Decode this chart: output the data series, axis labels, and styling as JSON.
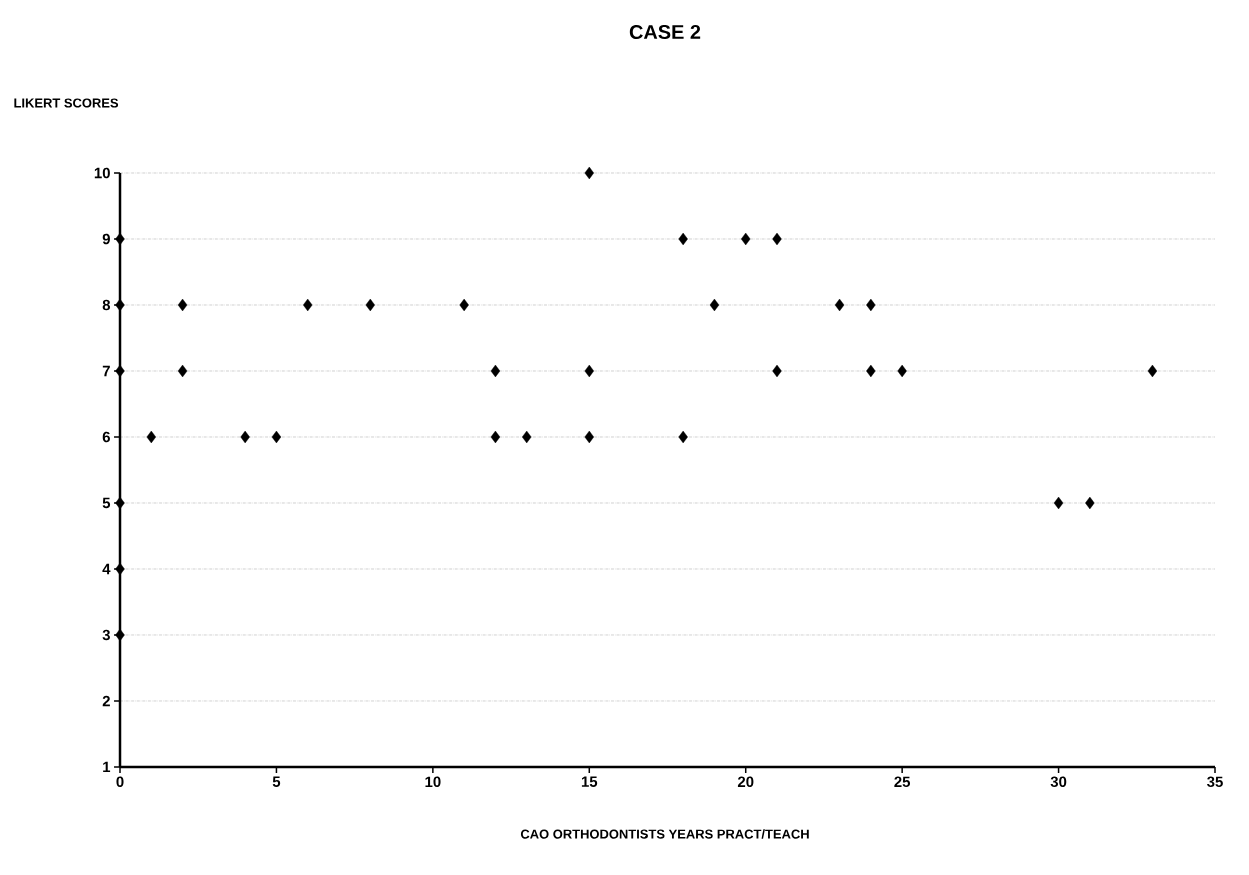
{
  "chart_data": {
    "type": "scatter",
    "title": "CASE 2",
    "ylabel": "LIKERT SCORES",
    "xlabel": "CAO ORTHODONTISTS YEARS PRACT/TEACH",
    "x": [
      0,
      0,
      0,
      0,
      0,
      0,
      1,
      2,
      2,
      4,
      5,
      6,
      8,
      11,
      12,
      12,
      13,
      15,
      15,
      15,
      18,
      18,
      19,
      20,
      21,
      21,
      23,
      24,
      24,
      25,
      30,
      31,
      33
    ],
    "values": [
      9,
      8,
      7,
      5,
      4,
      3,
      6,
      8,
      7,
      6,
      6,
      8,
      8,
      8,
      7,
      6,
      6,
      10,
      7,
      6,
      9,
      6,
      8,
      9,
      9,
      7,
      8,
      8,
      7,
      7,
      5,
      5,
      7
    ],
    "color": "#000000",
    "marker": "diamond",
    "grid": "y",
    "xlim": [
      0,
      35
    ],
    "xticks": [
      0,
      5,
      10,
      15,
      20,
      25,
      30,
      35
    ],
    "ylim": [
      1,
      10
    ],
    "yticks": [
      1,
      2,
      3,
      4,
      5,
      6,
      7,
      8,
      9,
      10
    ]
  }
}
